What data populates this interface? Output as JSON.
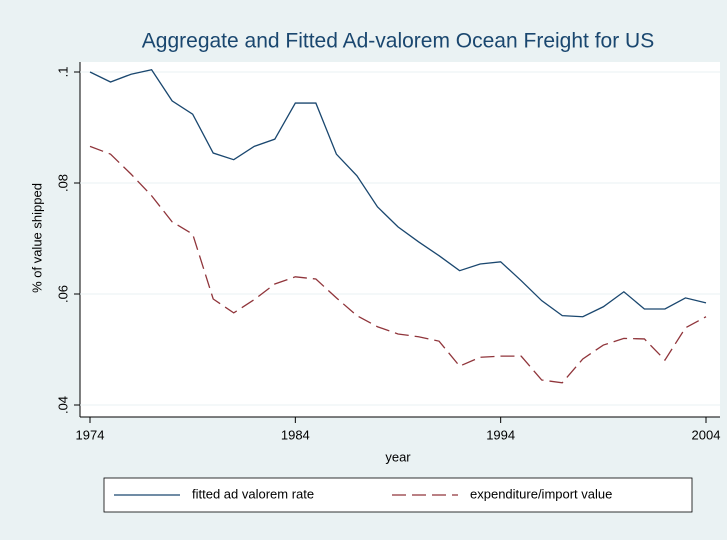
{
  "chart_data": {
    "type": "line",
    "title": "Aggregate and Fitted Ad-valorem Ocean Freight for US",
    "x_label": "year",
    "y_label": "% of value shipped",
    "x": [
      1974,
      1975,
      1976,
      1977,
      1978,
      1979,
      1980,
      1981,
      1982,
      1983,
      1984,
      1985,
      1986,
      1987,
      1988,
      1989,
      1990,
      1991,
      1992,
      1993,
      1994,
      1995,
      1996,
      1997,
      1998,
      1999,
      2000,
      2001,
      2002,
      2003,
      2004
    ],
    "series": [
      {
        "name": "fitted ad valorem rate",
        "color": "#1a476f",
        "dashed": false,
        "values": [
          0.1,
          0.0982,
          0.0996,
          0.1004,
          0.0948,
          0.0924,
          0.0854,
          0.0842,
          0.0866,
          0.0879,
          0.0944,
          0.0944,
          0.0852,
          0.0813,
          0.0757,
          0.0721,
          0.0694,
          0.0669,
          0.0642,
          0.0654,
          0.0658,
          0.0624,
          0.0588,
          0.0561,
          0.0559,
          0.0577,
          0.0604,
          0.0573,
          0.0573,
          0.0593,
          0.0584
        ]
      },
      {
        "name": "expenditure/import value",
        "color": "#90353b",
        "dashed": true,
        "values": [
          0.0866,
          0.0852,
          0.0816,
          0.0777,
          0.073,
          0.0708,
          0.0591,
          0.0566,
          0.059,
          0.0618,
          0.0631,
          0.0627,
          0.0593,
          0.0561,
          0.0541,
          0.0528,
          0.0523,
          0.0515,
          0.047,
          0.0486,
          0.0488,
          0.0488,
          0.0445,
          0.044,
          0.0483,
          0.0508,
          0.052,
          0.0519,
          0.0481,
          0.0539,
          0.0559
        ]
      }
    ],
    "xlim": [
      1974,
      2004
    ],
    "xticks": [
      1974,
      1984,
      1994,
      2004
    ],
    "ylim": [
      0.04,
      0.1
    ],
    "yticks": [
      {
        "value": 0.04,
        "label": ".04"
      },
      {
        "value": 0.06,
        "label": ".06"
      },
      {
        "value": 0.08,
        "label": ".08"
      },
      {
        "value": 0.1,
        "label": ".1"
      }
    ],
    "grid": true,
    "legend": "bottom"
  }
}
